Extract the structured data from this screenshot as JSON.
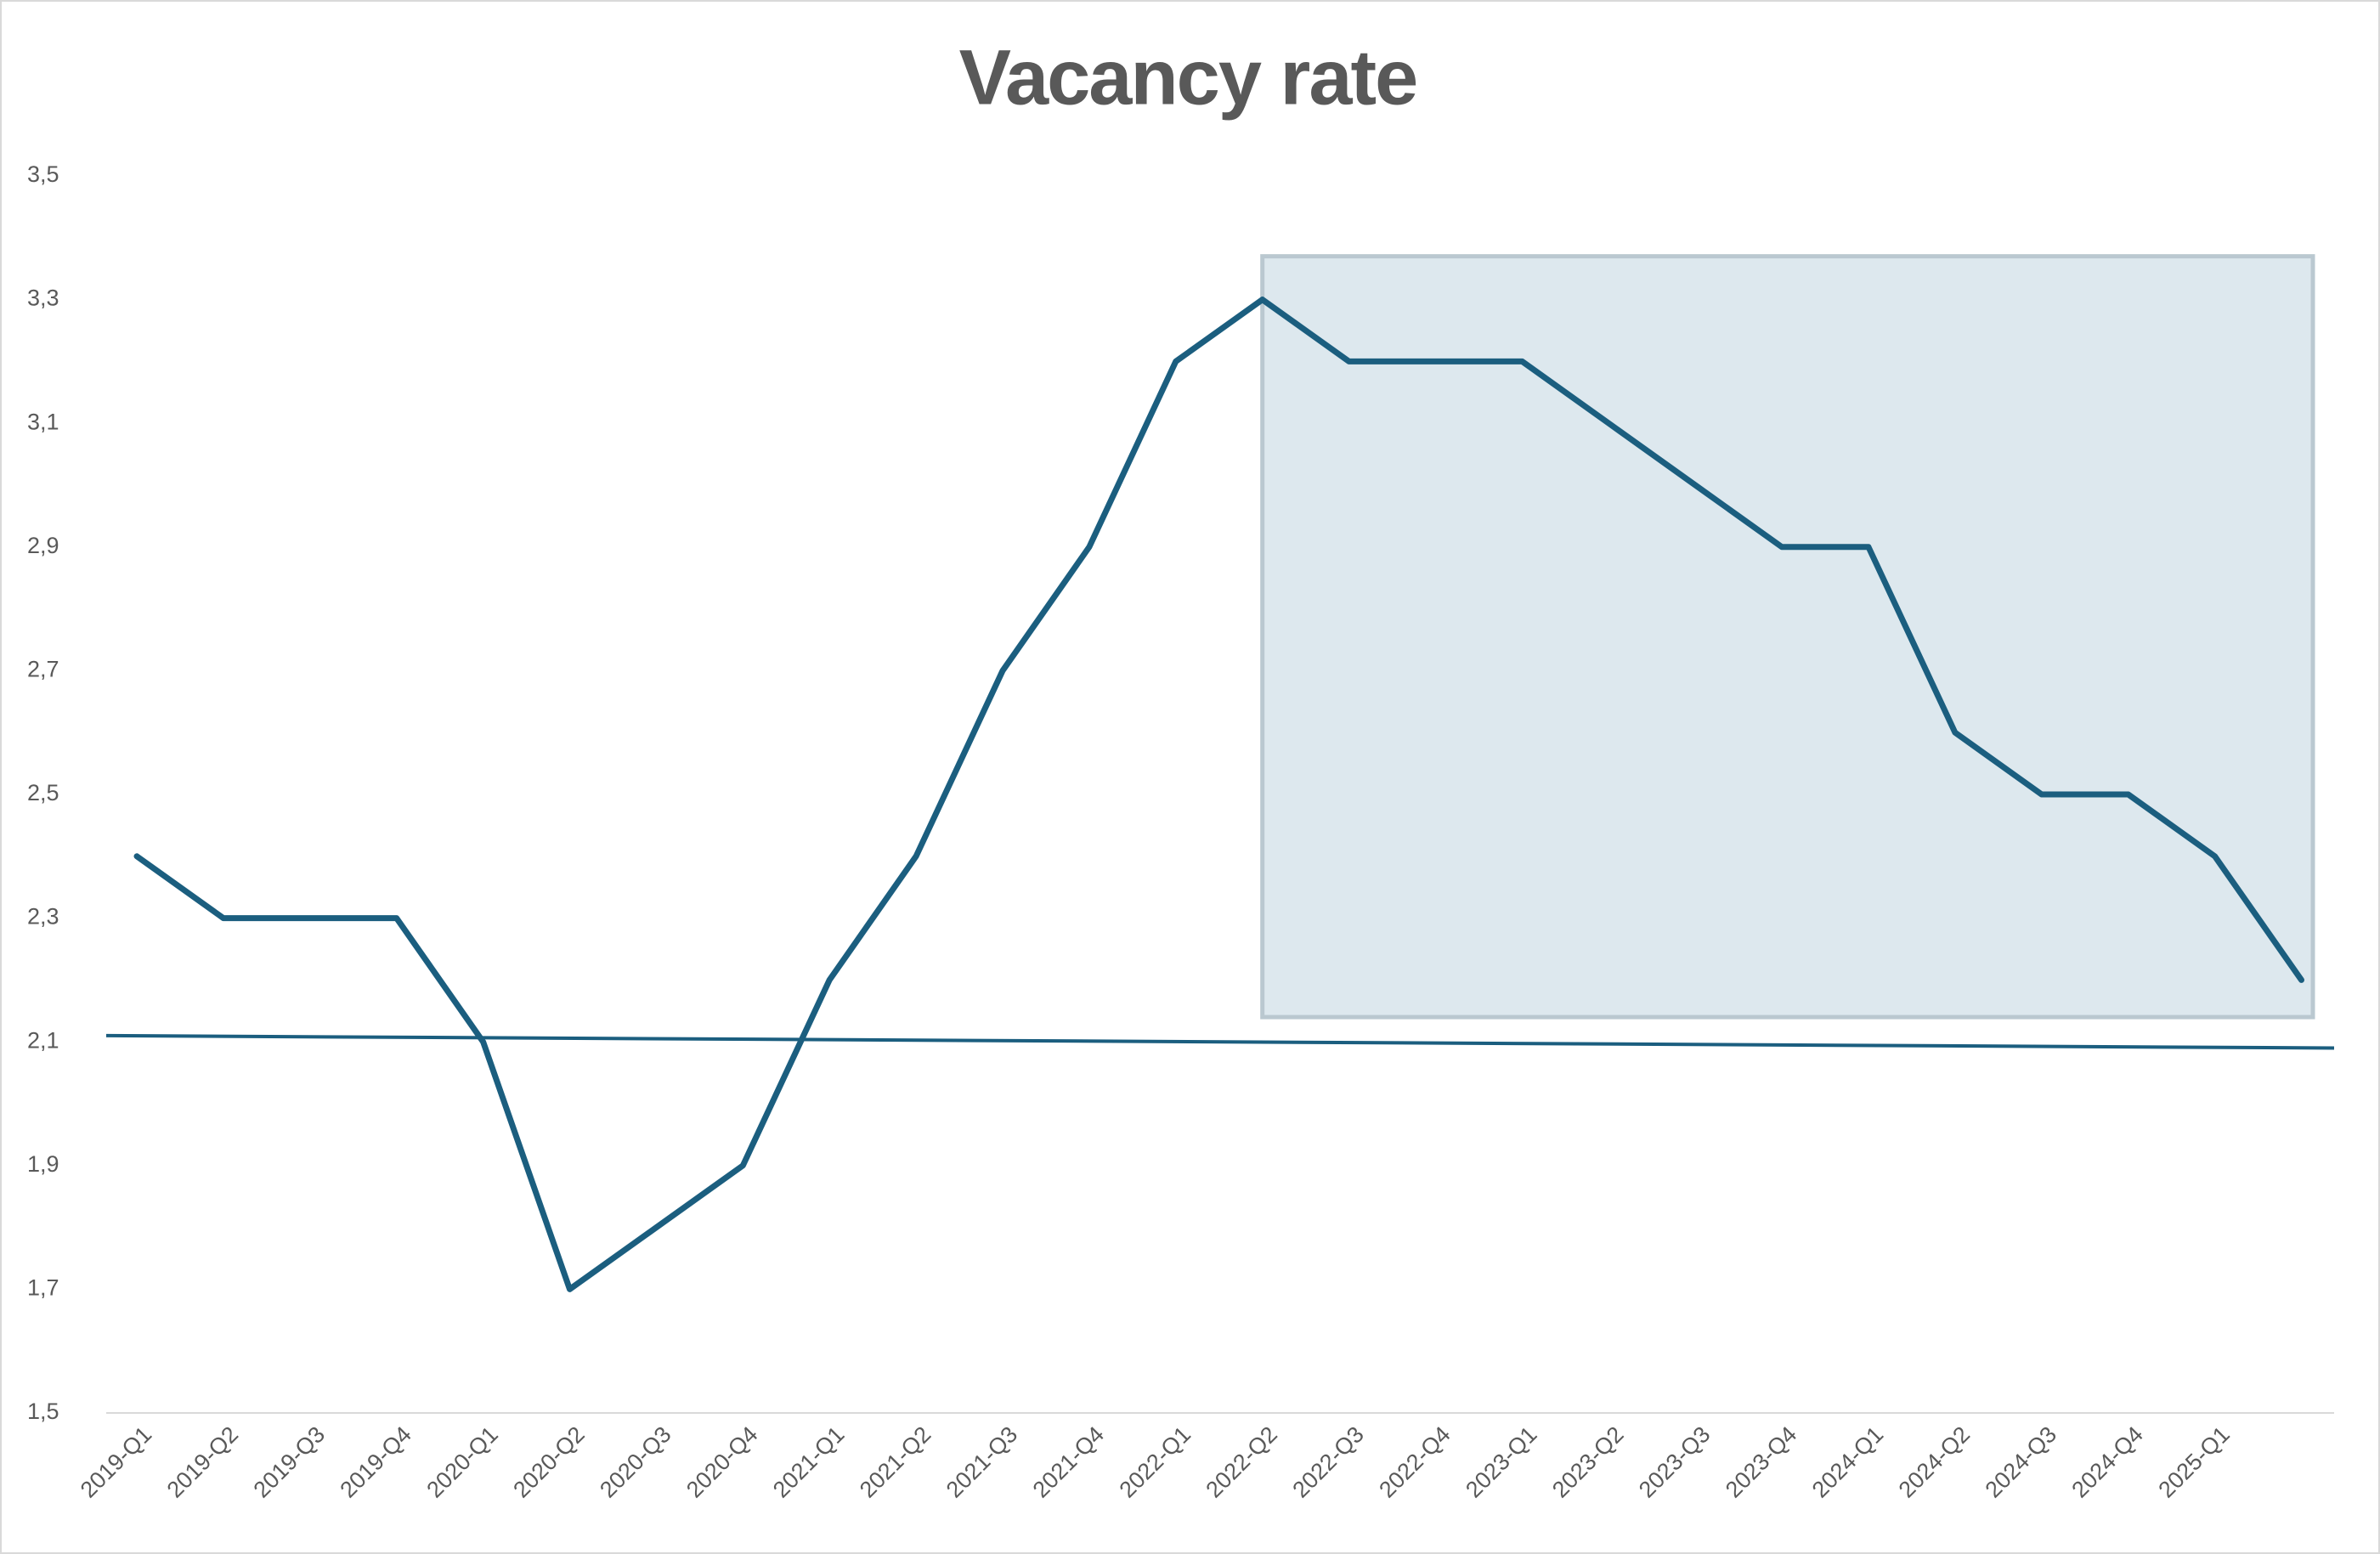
{
  "chart_data": {
    "type": "line",
    "title": "Vacancy rate",
    "categories": [
      "2019-Q1",
      "2019-Q2",
      "2019-Q3",
      "2019-Q4",
      "2020-Q1",
      "2020-Q2",
      "2020-Q3",
      "2020-Q4",
      "2021-Q1",
      "2021-Q2",
      "2021-Q3",
      "2021-Q4",
      "2022-Q1",
      "2022-Q2",
      "2022-Q3",
      "2022-Q4",
      "2023-Q1",
      "2023-Q2",
      "2023-Q3",
      "2023-Q4",
      "2024-Q1",
      "2024-Q2",
      "2024-Q3",
      "2024-Q4",
      "2025-Q1",
      null
    ],
    "values": [
      2.4,
      2.3,
      2.3,
      2.3,
      2.1,
      1.7,
      1.8,
      1.9,
      2.2,
      2.4,
      2.7,
      2.9,
      3.2,
      3.3,
      3.2,
      3.2,
      3.2,
      3.1,
      3.0,
      2.9,
      2.9,
      2.6,
      2.5,
      2.5,
      2.4,
      2.2
    ],
    "color": "#1b5e7f",
    "ylim": [
      1.5,
      3.5
    ],
    "yticks": [
      {
        "value": 1.5,
        "label": "1,5"
      },
      {
        "value": 1.7,
        "label": "1,7"
      },
      {
        "value": 1.9,
        "label": "1,9"
      },
      {
        "value": 2.1,
        "label": "2,1"
      },
      {
        "value": 2.3,
        "label": "2,3"
      },
      {
        "value": 2.5,
        "label": "2,5"
      },
      {
        "value": 2.7,
        "label": "2,7"
      },
      {
        "value": 2.9,
        "label": "2,9"
      },
      {
        "value": 3.1,
        "label": "3,1"
      },
      {
        "value": 3.3,
        "label": "3,3"
      },
      {
        "value": 3.5,
        "label": "3,5"
      }
    ],
    "grid": false,
    "reference_line": {
      "values": [
        2.11,
        2.09
      ],
      "color": "#1b5e7f"
    },
    "highlight": {
      "from_index": 13,
      "ylim": [
        2.14,
        3.37
      ],
      "color": "#dde8ee",
      "border": "#bac8d0"
    }
  }
}
